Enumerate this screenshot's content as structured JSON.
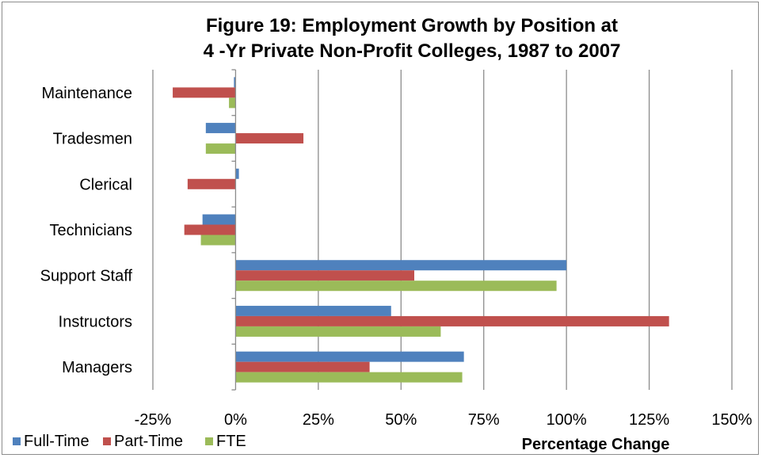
{
  "chart_data": {
    "type": "bar",
    "orientation": "horizontal",
    "title_lines": [
      "Figure 19: Employment Growth by Position at",
      "4 -Yr Private Non-Profit Colleges, 1987 to 2007"
    ],
    "xlabel": "Percentage Change",
    "ylabel": "",
    "categories": [
      "Maintenance",
      "Tradesmen",
      "Clerical",
      "Technicians",
      "Support Staff",
      "Instructors",
      "Managers"
    ],
    "series": [
      {
        "name": "Full-Time",
        "color": "#4F81BD",
        "values": [
          -0.5,
          -9,
          1,
          -10,
          100,
          47,
          69
        ]
      },
      {
        "name": "Part-Time",
        "color": "#C0504D",
        "values": [
          -19,
          20.5,
          -14.5,
          -15.5,
          54,
          131,
          40.5
        ]
      },
      {
        "name": "FTE",
        "color": "#9BBB59",
        "values": [
          -2,
          -9,
          0,
          -10.5,
          97,
          62,
          68.5
        ]
      }
    ],
    "x_ticks": [
      -25,
      0,
      25,
      50,
      75,
      100,
      125,
      150
    ],
    "x_tick_labels": [
      "-25%",
      "0%",
      "25%",
      "50%",
      "75%",
      "100%",
      "125%",
      "150%"
    ],
    "xlim": [
      -25,
      150
    ],
    "grid": "vertical major gridlines",
    "legend_position": "bottom-left"
  }
}
